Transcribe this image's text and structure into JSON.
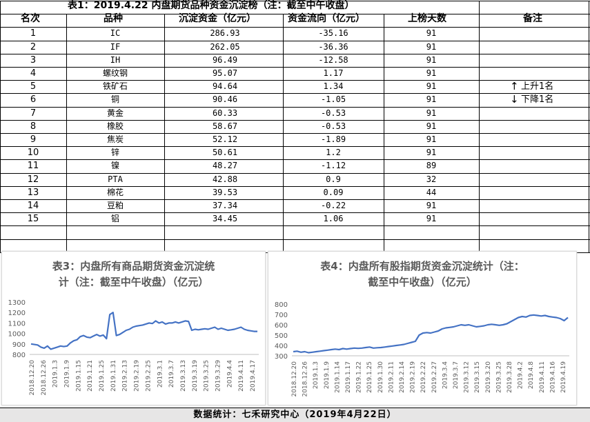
{
  "table": {
    "title": "表1：2019.4.22 内盘期货品种资金沉淀榜（注：截至中午收盘）",
    "headers": [
      "名次",
      "品种",
      "沉淀资金（亿元）",
      "资金流向（亿元）",
      "上榜天数",
      "备注"
    ],
    "rows": [
      {
        "rank": "1",
        "name": "IC",
        "fund": "286.93",
        "flow": "-35.16",
        "days": "91"
      },
      {
        "rank": "2",
        "name": "IF",
        "fund": "262.05",
        "flow": "-36.36",
        "days": "91"
      },
      {
        "rank": "3",
        "name": "IH",
        "fund": "96.49",
        "flow": "-12.58",
        "days": "91"
      },
      {
        "rank": "4",
        "name": "螺纹钢",
        "fund": "95.07",
        "flow": "1.17",
        "days": "91"
      },
      {
        "rank": "5",
        "name": "铁矿石",
        "fund": "94.64",
        "flow": "1.34",
        "days": "91"
      },
      {
        "rank": "6",
        "name": "铜",
        "fund": "90.46",
        "flow": "-1.05",
        "days": "91"
      },
      {
        "rank": "7",
        "name": "黄金",
        "fund": "60.33",
        "flow": "-0.53",
        "days": "91"
      },
      {
        "rank": "8",
        "name": "橡胶",
        "fund": "58.67",
        "flow": "-0.53",
        "days": "91"
      },
      {
        "rank": "9",
        "name": "焦炭",
        "fund": "52.12",
        "flow": "-1.89",
        "days": "91"
      },
      {
        "rank": "10",
        "name": "锌",
        "fund": "50.61",
        "flow": "1.2",
        "days": "91"
      },
      {
        "rank": "11",
        "name": "镍",
        "fund": "48.27",
        "flow": "-1.12",
        "days": "89"
      },
      {
        "rank": "12",
        "name": "PTA",
        "fund": "42.88",
        "flow": "0.9",
        "days": "32"
      },
      {
        "rank": "13",
        "name": "棉花",
        "fund": "39.53",
        "flow": "0.09",
        "days": "44"
      },
      {
        "rank": "14",
        "name": "豆粕",
        "fund": "37.34",
        "flow": "-0.22",
        "days": "91"
      },
      {
        "rank": "15",
        "name": "铝",
        "fund": "34.45",
        "flow": "1.06",
        "days": "91"
      }
    ],
    "notes": {
      "up": "上升1名",
      "down": "下降1名",
      "up_arrow": "↑",
      "down_arrow": "↓"
    }
  },
  "footer": "数据统计：七禾研究中心（2019年4月22日）",
  "colors": {
    "line": "#4472c4",
    "axis": "#bfbfbf",
    "grid": "#d9d9d9",
    "title": "#595959"
  },
  "chart_data": [
    {
      "type": "line",
      "title": "表3：内盘所有商品期货资金沉淀统计（注：截至中午收盘）（亿元）",
      "title_lines": [
        "表3：内盘所有商品期货资金沉淀统",
        "计（注：截至中午收盘）（亿元）"
      ],
      "ylim": [
        800,
        1300
      ],
      "yticks": [
        800,
        900,
        1000,
        1100,
        1200,
        1300
      ],
      "xticks": [
        "2018.12.20",
        "2018.12.26",
        "2019.1.3",
        "2019.1.9",
        "2019.1.15",
        "2019.1.21",
        "2019.1.25",
        "2019.1.31",
        "2019.2.13",
        "2019.2.19",
        "2019.2.25",
        "2019.3.1",
        "2019.3.7",
        "2019.3.13",
        "2019.3.19",
        "2019.3.25",
        "2019.3.29",
        "2019.4.4",
        "2019.4.11",
        "2019.4.17"
      ],
      "grid": false,
      "series": [
        {
          "values": [
            900,
            895,
            890,
            870,
            860,
            880,
            850,
            860,
            870,
            880,
            875,
            880,
            910,
            930,
            940,
            970,
            980,
            965,
            960,
            975,
            990,
            975,
            985,
            950,
            1180,
            1200,
            980,
            990,
            1010,
            1030,
            1040,
            1060,
            1070,
            1075,
            1080,
            1090,
            1100,
            1095,
            1120,
            1100,
            1110,
            1090,
            1100,
            1100,
            1110,
            1100,
            1110,
            1120,
            1115,
            1030,
            1040,
            1035,
            1040,
            1045,
            1040,
            1050,
            1060,
            1040,
            1050,
            1040,
            1030,
            1035,
            1040,
            1050,
            1060,
            1040,
            1030,
            1025,
            1020,
            1020
          ]
        }
      ]
    },
    {
      "type": "line",
      "title": "表4：内盘所有股指期货资金沉淀统计（注：截至中午收盘）（亿元）",
      "title_lines": [
        "表4：内盘所有股指期货资金沉淀统计（注：",
        "截至中午收盘）（亿元）"
      ],
      "ylim": [
        300,
        800
      ],
      "yticks": [
        300,
        400,
        500,
        600,
        700,
        800
      ],
      "xticks": [
        "2018.12.20",
        "2018.12.26",
        "2019.1.3",
        "2019.1.9",
        "2019.1.14",
        "2019.1.17",
        "2019.1.22",
        "2019.1.25",
        "2019.1.30",
        "2019.2.11",
        "2019.2.14",
        "2019.2.19",
        "2019.2.22",
        "2019.2.27",
        "2019.3.4",
        "2019.3.7",
        "2019.3.12",
        "2019.3.15",
        "2019.3.20",
        "2019.3.25",
        "2019.3.28",
        "2019.4.2",
        "2019.4.8",
        "2019.4.11",
        "2019.4.16",
        "2019.4.19"
      ],
      "grid": false,
      "series": [
        {
          "values": [
            340,
            345,
            335,
            340,
            330,
            335,
            340,
            345,
            350,
            355,
            360,
            365,
            360,
            370,
            365,
            370,
            375,
            372,
            375,
            380,
            385,
            375,
            378,
            380,
            385,
            390,
            395,
            400,
            405,
            410,
            420,
            430,
            440,
            500,
            520,
            525,
            520,
            530,
            540,
            560,
            570,
            575,
            580,
            590,
            600,
            595,
            600,
            590,
            580,
            585,
            590,
            600,
            605,
            600,
            595,
            600,
            610,
            630,
            650,
            670,
            680,
            675,
            690,
            695,
            690,
            685,
            690,
            680,
            675,
            670,
            660,
            640,
            670
          ]
        }
      ]
    }
  ]
}
